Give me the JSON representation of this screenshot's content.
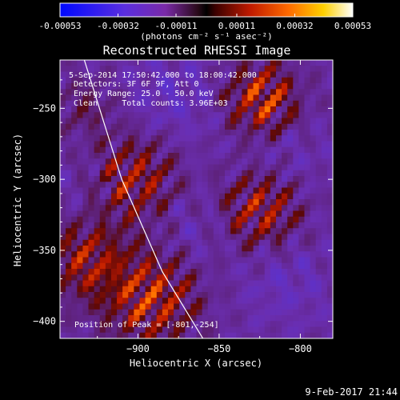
{
  "chart_data": {
    "type": "heatmap",
    "title": "Reconstructed RHESSI Image",
    "xlabel": "Heliocentric X (arcsec)",
    "ylabel": "Heliocentric Y (arcsec)",
    "xlim": [
      -948,
      -780
    ],
    "ylim": [
      -412,
      -216
    ],
    "x_ticks": [
      -900,
      -850,
      -800
    ],
    "y_ticks": [
      -250,
      -300,
      -350,
      -400
    ],
    "colorbar": {
      "range": [
        -0.00053,
        0.00053
      ],
      "tick_values": [
        -0.00053,
        -0.00032,
        -0.00011,
        0.00011,
        0.00032,
        0.00053
      ],
      "tick_labels": [
        "-0.00053",
        "-0.00032",
        "-0.00011",
        "0.00011",
        "0.00032",
        "0.00053"
      ],
      "units": "(photons cm⁻² s⁻¹ asec⁻²)"
    },
    "annotations": [
      "5-Sep-2014 17:50:42.000 to 18:00:42.000",
      "Detectors: 3F 6F 9F, Att 0",
      "Energy Range: 25.0 - 50.0 keV",
      "Clean     Total counts: 3.96E+03"
    ],
    "peak_label": "Position of Peak = [-801,-254]",
    "peak_position": [
      -801,
      -254
    ],
    "limb_curve": [
      [
        -933,
        -216
      ],
      [
        -910,
        -300
      ],
      [
        -885,
        -365
      ],
      [
        -860,
        -412
      ]
    ]
  },
  "footer": {
    "timestamp": "9-Feb-2017 21:44"
  }
}
